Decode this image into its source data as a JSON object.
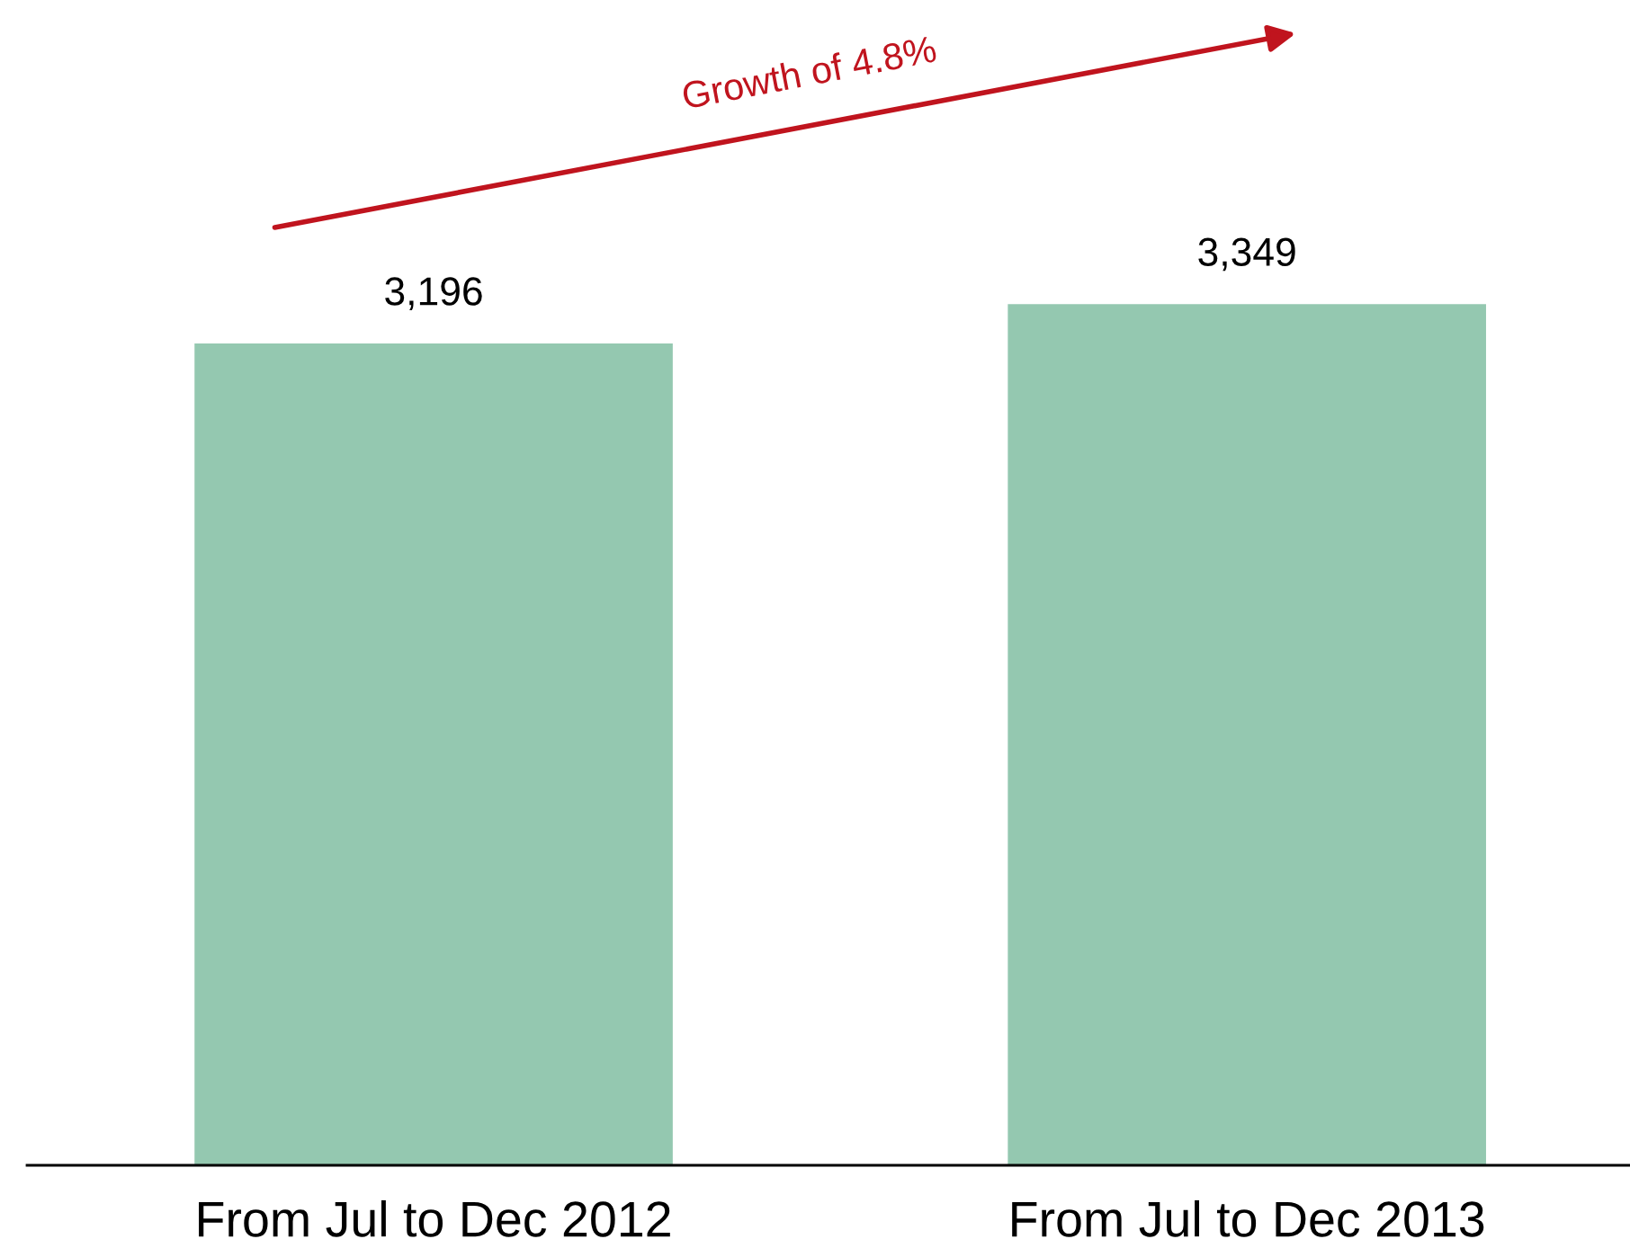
{
  "chart_data": {
    "type": "bar",
    "categories": [
      "From Jul to Dec 2012",
      "From Jul to Dec 2013"
    ],
    "values": [
      3196,
      3349
    ],
    "value_labels": [
      "3,196",
      "3,349"
    ],
    "color": "#94c8b0",
    "annotations": [
      "Growth of 4.8%"
    ],
    "grid": false,
    "legend": false
  }
}
